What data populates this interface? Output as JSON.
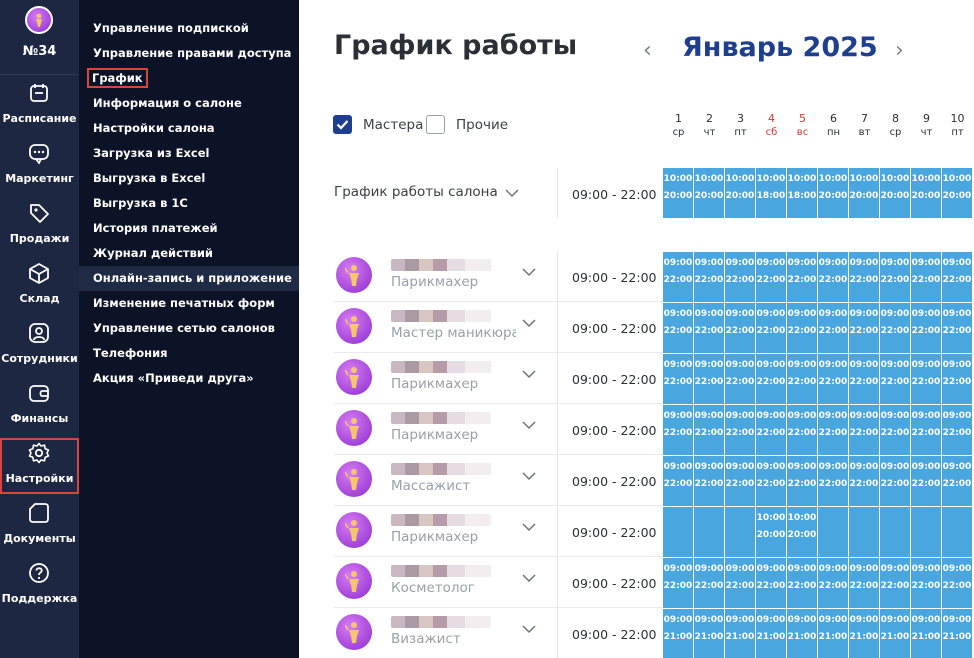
{
  "rail": {
    "salon_number": "№34",
    "items": [
      {
        "label": "Расписание",
        "icon": "calendar-icon"
      },
      {
        "label": "Маркетинг",
        "icon": "chat-icon"
      },
      {
        "label": "Продажи",
        "icon": "tag-icon"
      },
      {
        "label": "Склад",
        "icon": "box-icon"
      },
      {
        "label": "Сотрудники",
        "icon": "user-icon"
      },
      {
        "label": "Финансы",
        "icon": "wallet-icon"
      },
      {
        "label": "Настройки",
        "icon": "gear-icon",
        "active": true
      },
      {
        "label": "Документы",
        "icon": "document-icon"
      },
      {
        "label": "Поддержка",
        "icon": "help-icon"
      }
    ]
  },
  "submenu": {
    "items": [
      "Управление подпиской",
      "Управление правами доступа",
      "График",
      "Информация о салоне",
      "Настройки салона",
      "Загрузка из Excel",
      "Выгрузка в Excel",
      "Выгрузка в 1С",
      "История платежей",
      "Журнал действий",
      "Онлайн-запись и приложение",
      "Изменение печатных форм",
      "Управление сетью салонов",
      "Телефония",
      "Акция «Приведи друга»"
    ],
    "current_index": 2,
    "highlight_index": 10
  },
  "header": {
    "title": "График работы",
    "month": "Январь 2025",
    "prev": "‹",
    "next": "›"
  },
  "filters": {
    "masters_label": "Мастера",
    "masters_checked": true,
    "others_label": "Прочие",
    "others_checked": false
  },
  "days": [
    {
      "n": "1",
      "w": "ср",
      "weekend": false
    },
    {
      "n": "2",
      "w": "чт",
      "weekend": false
    },
    {
      "n": "3",
      "w": "пт",
      "weekend": false
    },
    {
      "n": "4",
      "w": "сб",
      "weekend": true
    },
    {
      "n": "5",
      "w": "вс",
      "weekend": true
    },
    {
      "n": "6",
      "w": "пн",
      "weekend": false
    },
    {
      "n": "7",
      "w": "вт",
      "weekend": false
    },
    {
      "n": "8",
      "w": "ср",
      "weekend": false
    },
    {
      "n": "9",
      "w": "чт",
      "weekend": false
    },
    {
      "n": "10",
      "w": "пт",
      "weekend": false
    }
  ],
  "salon": {
    "label": "График работы салона",
    "hours": "09:00 - 22:00",
    "cells": [
      [
        "10:00",
        "20:00"
      ],
      [
        "10:00",
        "20:00"
      ],
      [
        "10:00",
        "20:00"
      ],
      [
        "10:00",
        "18:00"
      ],
      [
        "10:00",
        "18:00"
      ],
      [
        "10:00",
        "20:00"
      ],
      [
        "10:00",
        "20:00"
      ],
      [
        "10:00",
        "20:00"
      ],
      [
        "10:00",
        "20:00"
      ],
      [
        "10:00",
        "20:00"
      ]
    ]
  },
  "staff": [
    {
      "role": "Парикмахер",
      "hours": "09:00 - 22:00",
      "cells": [
        [
          "09:00",
          "22:00"
        ],
        [
          "09:00",
          "22:00"
        ],
        [
          "09:00",
          "22:00"
        ],
        [
          "09:00",
          "22:00"
        ],
        [
          "09:00",
          "22:00"
        ],
        [
          "09:00",
          "22:00"
        ],
        [
          "09:00",
          "22:00"
        ],
        [
          "09:00",
          "22:00"
        ],
        [
          "09:00",
          "22:00"
        ],
        [
          "09:00",
          "22:00"
        ]
      ]
    },
    {
      "role": "Мастер маникюра",
      "hours": "09:00 - 22:00",
      "cells": [
        [
          "09:00",
          "22:00"
        ],
        [
          "09:00",
          "22:00"
        ],
        [
          "09:00",
          "22:00"
        ],
        [
          "09:00",
          "22:00"
        ],
        [
          "09:00",
          "22:00"
        ],
        [
          "09:00",
          "22:00"
        ],
        [
          "09:00",
          "22:00"
        ],
        [
          "09:00",
          "22:00"
        ],
        [
          "09:00",
          "22:00"
        ],
        [
          "09:00",
          "22:00"
        ]
      ]
    },
    {
      "role": "Парикмахер",
      "hours": "09:00 - 22:00",
      "cells": [
        [
          "09:00",
          "22:00"
        ],
        [
          "09:00",
          "22:00"
        ],
        [
          "09:00",
          "22:00"
        ],
        [
          "09:00",
          "22:00"
        ],
        [
          "09:00",
          "22:00"
        ],
        [
          "09:00",
          "22:00"
        ],
        [
          "09:00",
          "22:00"
        ],
        [
          "09:00",
          "22:00"
        ],
        [
          "09:00",
          "22:00"
        ],
        [
          "09:00",
          "22:00"
        ]
      ]
    },
    {
      "role": "Парикмахер",
      "hours": "09:00 - 22:00",
      "cells": [
        [
          "09:00",
          "22:00"
        ],
        [
          "09:00",
          "22:00"
        ],
        [
          "09:00",
          "22:00"
        ],
        [
          "09:00",
          "22:00"
        ],
        [
          "09:00",
          "22:00"
        ],
        [
          "09:00",
          "22:00"
        ],
        [
          "09:00",
          "22:00"
        ],
        [
          "09:00",
          "22:00"
        ],
        [
          "09:00",
          "22:00"
        ],
        [
          "09:00",
          "22:00"
        ]
      ]
    },
    {
      "role": "Массажист",
      "hours": "09:00 - 22:00",
      "cells": [
        [
          "09:00",
          "22:00"
        ],
        [
          "09:00",
          "22:00"
        ],
        [
          "09:00",
          "22:00"
        ],
        [
          "09:00",
          "22:00"
        ],
        [
          "09:00",
          "22:00"
        ],
        [
          "09:00",
          "22:00"
        ],
        [
          "09:00",
          "22:00"
        ],
        [
          "09:00",
          "22:00"
        ],
        [
          "09:00",
          "22:00"
        ],
        [
          "09:00",
          "22:00"
        ]
      ]
    },
    {
      "role": "Парикмахер",
      "hours": "09:00 - 22:00",
      "cells": [
        [
          "",
          ""
        ],
        [
          "",
          ""
        ],
        [
          "",
          ""
        ],
        [
          "10:00",
          "20:00"
        ],
        [
          "10:00",
          "20:00"
        ],
        [
          "",
          ""
        ],
        [
          "",
          ""
        ],
        [
          "",
          ""
        ],
        [
          "",
          ""
        ],
        [
          "",
          ""
        ]
      ]
    },
    {
      "role": "Косметолог",
      "hours": "09:00 - 22:00",
      "cells": [
        [
          "09:00",
          "22:00"
        ],
        [
          "09:00",
          "22:00"
        ],
        [
          "09:00",
          "22:00"
        ],
        [
          "09:00",
          "22:00"
        ],
        [
          "09:00",
          "22:00"
        ],
        [
          "09:00",
          "22:00"
        ],
        [
          "09:00",
          "22:00"
        ],
        [
          "09:00",
          "22:00"
        ],
        [
          "09:00",
          "22:00"
        ],
        [
          "09:00",
          "22:00"
        ]
      ]
    },
    {
      "role": "Визажист",
      "hours": "09:00 - 22:00",
      "cells": [
        [
          "09:00",
          "21:00"
        ],
        [
          "09:00",
          "21:00"
        ],
        [
          "09:00",
          "21:00"
        ],
        [
          "09:00",
          "21:00"
        ],
        [
          "09:00",
          "21:00"
        ],
        [
          "09:00",
          "21:00"
        ],
        [
          "09:00",
          "21:00"
        ],
        [
          "09:00",
          "21:00"
        ],
        [
          "09:00",
          "21:00"
        ],
        [
          "09:00",
          "21:00"
        ]
      ]
    }
  ]
}
